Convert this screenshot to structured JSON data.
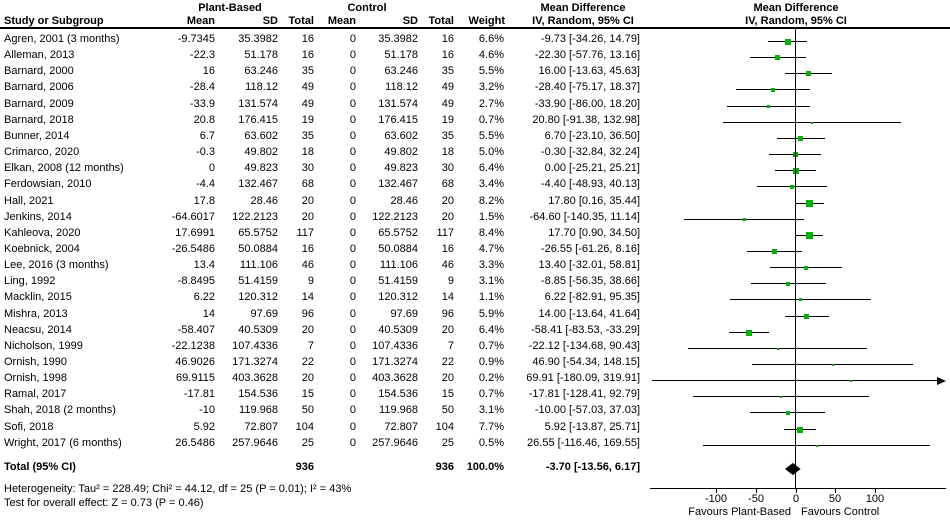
{
  "header": {
    "col_study": "Study or Subgroup",
    "group1": "Plant-Based",
    "group2": "Control",
    "col_mean": "Mean",
    "col_sd": "SD",
    "col_total": "Total",
    "col_weight": "Weight",
    "md_title": "Mean Difference",
    "md_subtitle": "IV, Random, 95% CI"
  },
  "chart_data": {
    "type": "forest",
    "effect_measure": "Mean Difference, IV, Random, 95% CI",
    "marker_color": "#00b300",
    "line_color": "#000000",
    "axis": {
      "ticks": [
        -100,
        -50,
        0,
        50,
        100
      ],
      "plot_value_range": [
        -183,
        189
      ],
      "zero_line": 0
    },
    "favours_left": "Favours Plant-Based",
    "favours_right": "Favours Control",
    "studies": [
      {
        "label": "Agren, 2001 (3 months)",
        "mean1": "-9.7345",
        "sd1": "35.3982",
        "n1": "16",
        "mean2": "0",
        "sd2": "35.3982",
        "n2": "16",
        "weight": "6.6%",
        "ci": "-9.73 [-34.26, 14.79]",
        "md": -9.73,
        "lo": -34.26,
        "hi": 14.79,
        "w": 6.6
      },
      {
        "label": "Alleman, 2013",
        "mean1": "-22.3",
        "sd1": "51.178",
        "n1": "16",
        "mean2": "0",
        "sd2": "51.178",
        "n2": "16",
        "weight": "4.6%",
        "ci": "-22.30 [-57.76, 13.16]",
        "md": -22.3,
        "lo": -57.76,
        "hi": 13.16,
        "w": 4.6
      },
      {
        "label": "Barnard, 2000",
        "mean1": "16",
        "sd1": "63.246",
        "n1": "35",
        "mean2": "0",
        "sd2": "63.246",
        "n2": "35",
        "weight": "5.5%",
        "ci": "16.00 [-13.63, 45.63]",
        "md": 16.0,
        "lo": -13.63,
        "hi": 45.63,
        "w": 5.5
      },
      {
        "label": "Barnard, 2006",
        "mean1": "-28.4",
        "sd1": "118.12",
        "n1": "49",
        "mean2": "0",
        "sd2": "118.12",
        "n2": "49",
        "weight": "3.2%",
        "ci": "-28.40 [-75.17, 18.37]",
        "md": -28.4,
        "lo": -75.17,
        "hi": 18.37,
        "w": 3.2
      },
      {
        "label": "Barnard, 2009",
        "mean1": "-33.9",
        "sd1": "131.574",
        "n1": "49",
        "mean2": "0",
        "sd2": "131.574",
        "n2": "49",
        "weight": "2.7%",
        "ci": "-33.90 [-86.00, 18.20]",
        "md": -33.9,
        "lo": -86.0,
        "hi": 18.2,
        "w": 2.7
      },
      {
        "label": "Barnard, 2018",
        "mean1": "20.8",
        "sd1": "176.415",
        "n1": "19",
        "mean2": "0",
        "sd2": "176.415",
        "n2": "19",
        "weight": "0.7%",
        "ci": "20.80 [-91.38, 132.98]",
        "md": 20.8,
        "lo": -91.38,
        "hi": 132.98,
        "w": 0.7
      },
      {
        "label": "Bunner, 2014",
        "mean1": "6.7",
        "sd1": "63.602",
        "n1": "35",
        "mean2": "0",
        "sd2": "63.602",
        "n2": "35",
        "weight": "5.5%",
        "ci": "6.70 [-23.10, 36.50]",
        "md": 6.7,
        "lo": -23.1,
        "hi": 36.5,
        "w": 5.5
      },
      {
        "label": "Crimarco, 2020",
        "mean1": "-0.3",
        "sd1": "49.802",
        "n1": "18",
        "mean2": "0",
        "sd2": "49.802",
        "n2": "18",
        "weight": "5.0%",
        "ci": "-0.30 [-32.84, 32.24]",
        "md": -0.3,
        "lo": -32.84,
        "hi": 32.24,
        "w": 5.0
      },
      {
        "label": "Elkan, 2008 (12 months)",
        "mean1": "0",
        "sd1": "49.823",
        "n1": "30",
        "mean2": "0",
        "sd2": "49.823",
        "n2": "30",
        "weight": "6.4%",
        "ci": "0.00 [-25.21, 25.21]",
        "md": 0.0,
        "lo": -25.21,
        "hi": 25.21,
        "w": 6.4
      },
      {
        "label": "Ferdowsian, 2010",
        "mean1": "-4.4",
        "sd1": "132.467",
        "n1": "68",
        "mean2": "0",
        "sd2": "132.467",
        "n2": "68",
        "weight": "3.4%",
        "ci": "-4.40 [-48.93, 40.13]",
        "md": -4.4,
        "lo": -48.93,
        "hi": 40.13,
        "w": 3.4
      },
      {
        "label": "Hall, 2021",
        "mean1": "17.8",
        "sd1": "28.46",
        "n1": "20",
        "mean2": "0",
        "sd2": "28.46",
        "n2": "20",
        "weight": "8.2%",
        "ci": "17.80 [0.16, 35.44]",
        "md": 17.8,
        "lo": 0.16,
        "hi": 35.44,
        "w": 8.2
      },
      {
        "label": "Jenkins, 2014",
        "mean1": "-64.6017",
        "sd1": "122.2123",
        "n1": "20",
        "mean2": "0",
        "sd2": "122.2123",
        "n2": "20",
        "weight": "1.5%",
        "ci": "-64.60 [-140.35, 11.14]",
        "md": -64.6,
        "lo": -140.35,
        "hi": 11.14,
        "w": 1.5
      },
      {
        "label": "Kahleova, 2020",
        "mean1": "17.6991",
        "sd1": "65.5752",
        "n1": "117",
        "mean2": "0",
        "sd2": "65.5752",
        "n2": "117",
        "weight": "8.4%",
        "ci": "17.70 [0.90, 34.50]",
        "md": 17.7,
        "lo": 0.9,
        "hi": 34.5,
        "w": 8.4
      },
      {
        "label": "Koebnick, 2004",
        "mean1": "-26.5486",
        "sd1": "50.0884",
        "n1": "16",
        "mean2": "0",
        "sd2": "50.0884",
        "n2": "16",
        "weight": "4.7%",
        "ci": "-26.55 [-61.26, 8.16]",
        "md": -26.55,
        "lo": -61.26,
        "hi": 8.16,
        "w": 4.7
      },
      {
        "label": "Lee, 2016 (3 months)",
        "mean1": "13.4",
        "sd1": "111.106",
        "n1": "46",
        "mean2": "0",
        "sd2": "111.106",
        "n2": "46",
        "weight": "3.3%",
        "ci": "13.40 [-32.01, 58.81]",
        "md": 13.4,
        "lo": -32.01,
        "hi": 58.81,
        "w": 3.3
      },
      {
        "label": "Ling, 1992",
        "mean1": "-8.8495",
        "sd1": "51.4159",
        "n1": "9",
        "mean2": "0",
        "sd2": "51.4159",
        "n2": "9",
        "weight": "3.1%",
        "ci": "-8.85 [-56.35, 38.66]",
        "md": -8.85,
        "lo": -56.35,
        "hi": 38.66,
        "w": 3.1
      },
      {
        "label": "Macklin, 2015",
        "mean1": "6.22",
        "sd1": "120.312",
        "n1": "14",
        "mean2": "0",
        "sd2": "120.312",
        "n2": "14",
        "weight": "1.1%",
        "ci": "6.22 [-82.91, 95.35]",
        "md": 6.22,
        "lo": -82.91,
        "hi": 95.35,
        "w": 1.1
      },
      {
        "label": "Mishra, 2013",
        "mean1": "14",
        "sd1": "97.69",
        "n1": "96",
        "mean2": "0",
        "sd2": "97.69",
        "n2": "96",
        "weight": "5.9%",
        "ci": "14.00 [-13.64, 41.64]",
        "md": 14.0,
        "lo": -13.64,
        "hi": 41.64,
        "w": 5.9
      },
      {
        "label": "Neacsu, 2014",
        "mean1": "-58.407",
        "sd1": "40.5309",
        "n1": "20",
        "mean2": "0",
        "sd2": "40.5309",
        "n2": "20",
        "weight": "6.4%",
        "ci": "-58.41 [-83.53, -33.29]",
        "md": -58.41,
        "lo": -83.53,
        "hi": -33.29,
        "w": 6.4
      },
      {
        "label": "Nicholson, 1999",
        "mean1": "-22.1238",
        "sd1": "107.4336",
        "n1": "7",
        "mean2": "0",
        "sd2": "107.4336",
        "n2": "7",
        "weight": "0.7%",
        "ci": "-22.12 [-134.68, 90.43]",
        "md": -22.12,
        "lo": -134.68,
        "hi": 90.43,
        "w": 0.7
      },
      {
        "label": "Ornish, 1990",
        "mean1": "46.9026",
        "sd1": "171.3274",
        "n1": "22",
        "mean2": "0",
        "sd2": "171.3274",
        "n2": "22",
        "weight": "0.9%",
        "ci": "46.90 [-54.34, 148.15]",
        "md": 46.9,
        "lo": -54.34,
        "hi": 148.15,
        "w": 0.9
      },
      {
        "label": "Ornish, 1998",
        "mean1": "69.9115",
        "sd1": "403.3628",
        "n1": "20",
        "mean2": "0",
        "sd2": "403.3628",
        "n2": "20",
        "weight": "0.2%",
        "ci": "69.91 [-180.09, 319.91]",
        "md": 69.91,
        "lo": -180.09,
        "hi": 319.91,
        "w": 0.2
      },
      {
        "label": "Ramal, 2017",
        "mean1": "-17.81",
        "sd1": "154.536",
        "n1": "15",
        "mean2": "0",
        "sd2": "154.536",
        "n2": "15",
        "weight": "0.7%",
        "ci": "-17.81 [-128.41, 92.79]",
        "md": -17.81,
        "lo": -128.41,
        "hi": 92.79,
        "w": 0.7
      },
      {
        "label": "Shah, 2018 (2 months)",
        "mean1": "-10",
        "sd1": "119.968",
        "n1": "50",
        "mean2": "0",
        "sd2": "119.968",
        "n2": "50",
        "weight": "3.1%",
        "ci": "-10.00 [-57.03, 37.03]",
        "md": -10.0,
        "lo": -57.03,
        "hi": 37.03,
        "w": 3.1
      },
      {
        "label": "Sofi, 2018",
        "mean1": "5.92",
        "sd1": "72.807",
        "n1": "104",
        "mean2": "0",
        "sd2": "72.807",
        "n2": "104",
        "weight": "7.7%",
        "ci": "5.92 [-13.87, 25.71]",
        "md": 5.92,
        "lo": -13.87,
        "hi": 25.71,
        "w": 7.7
      },
      {
        "label": "Wright, 2017 (6 months)",
        "mean1": "26.5486",
        "sd1": "257.9646",
        "n1": "25",
        "mean2": "0",
        "sd2": "257.9646",
        "n2": "25",
        "weight": "0.5%",
        "ci": "26.55 [-116.46, 169.55]",
        "md": 26.55,
        "lo": -116.46,
        "hi": 169.55,
        "w": 0.5
      }
    ],
    "total": {
      "label": "Total (95% CI)",
      "n1": "936",
      "n2": "936",
      "weight": "100.0%",
      "ci": "-3.70 [-13.56, 6.17]",
      "md": -3.7,
      "lo": -13.56,
      "hi": 6.17
    },
    "footnote_heterogeneity": "Heterogeneity: Tau² = 228.49; Chi² = 44.12, df = 25 (P = 0.01); I² = 43%",
    "footnote_overall": "Test for overall effect: Z = 0.73 (P = 0.46)"
  }
}
